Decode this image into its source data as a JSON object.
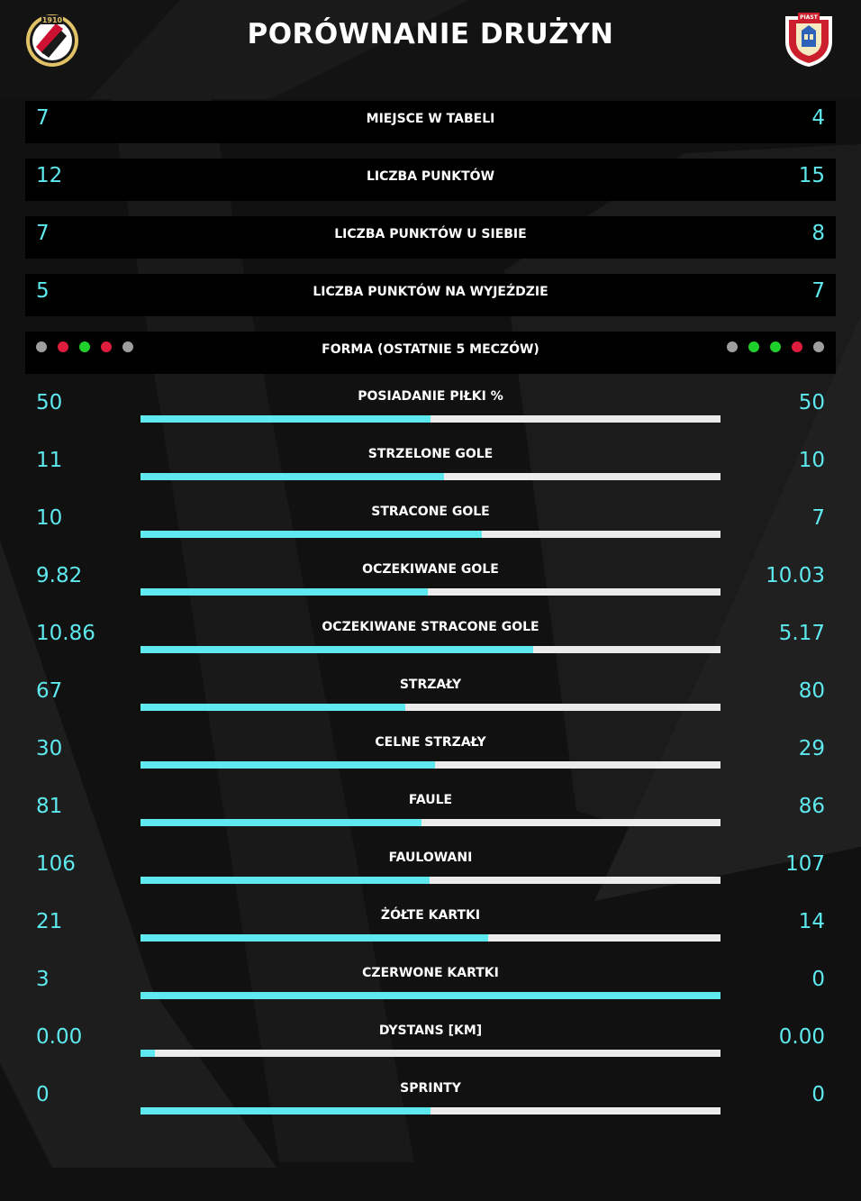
{
  "header": {
    "title": "PORÓWNANIE DRUŻYN",
    "left_logo_icon": "widzew-lodz-crest-icon",
    "left_logo_text": "1910",
    "right_logo_icon": "piast-gliwice-crest-icon",
    "right_logo_text": "PIAST"
  },
  "colors": {
    "accent": "#5ee9ee",
    "bar_track": "#ebebeb",
    "form_draw": "#9e9e9e",
    "form_loss": "#e01c3c",
    "form_win": "#1fcf2c"
  },
  "table_rows": [
    {
      "label": "MIEJSCE W TABELI",
      "left": "7",
      "right": "4"
    },
    {
      "label": "LICZBA PUNKTÓW",
      "left": "12",
      "right": "15"
    },
    {
      "label": "LICZBA PUNKTÓW U SIEBIE",
      "left": "7",
      "right": "8"
    },
    {
      "label": "LICZBA PUNKTÓW NA WYJEŹDZIE",
      "left": "5",
      "right": "7"
    }
  ],
  "form": {
    "label": "FORMA (OSTATNIE 5 MECZÓW)",
    "left": [
      "draw",
      "loss",
      "win",
      "loss",
      "draw"
    ],
    "right": [
      "draw",
      "win",
      "win",
      "loss",
      "draw"
    ]
  },
  "stats": [
    {
      "label": "POSIADANIE PIŁKI %",
      "left": "50",
      "right": "50",
      "share": 0.5
    },
    {
      "label": "STRZELONE GOLE",
      "left": "11",
      "right": "10",
      "share": 0.524
    },
    {
      "label": "STRACONE GOLE",
      "left": "10",
      "right": "7",
      "share": 0.588
    },
    {
      "label": "OCZEKIWANE GOLE",
      "left": "9.82",
      "right": "10.03",
      "share": 0.495
    },
    {
      "label": "OCZEKIWANE STRACONE GOLE",
      "left": "10.86",
      "right": "5.17",
      "share": 0.677
    },
    {
      "label": "STRZAŁY",
      "left": "67",
      "right": "80",
      "share": 0.456
    },
    {
      "label": "CELNE STRZAŁY",
      "left": "30",
      "right": "29",
      "share": 0.508
    },
    {
      "label": "FAULE",
      "left": "81",
      "right": "86",
      "share": 0.485
    },
    {
      "label": "FAULOWANI",
      "left": "106",
      "right": "107",
      "share": 0.498
    },
    {
      "label": "ŻÓŁTE KARTKI",
      "left": "21",
      "right": "14",
      "share": 0.6
    },
    {
      "label": "CZERWONE KARTKI",
      "left": "3",
      "right": "0",
      "share": 1.0
    },
    {
      "label": "DYSTANS [KM]",
      "left": "0.00",
      "right": "0.00",
      "share": 0.025
    },
    {
      "label": "SPRINTY",
      "left": "0",
      "right": "0",
      "share": 0.5
    }
  ]
}
